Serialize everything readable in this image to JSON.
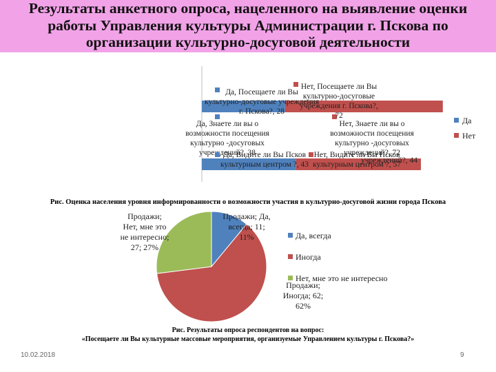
{
  "slide": {
    "title": "Результаты анкетного опроса, нацеленного на выявление оценки работы Управления культуры Администрации г. Пскова по организации культурно-досуговой деятельности",
    "footer_date": "10.02.2018",
    "page_number": "9",
    "title_band_color": "#f2a3e8"
  },
  "chart_data": [
    {
      "type": "bar",
      "orientation": "horizontal",
      "stacked": true,
      "caption": "Рис. Оценка населения уровня информированности о возможности участия в культурно-досуговой жизни города Пскова",
      "legend": {
        "position": "right",
        "entries": [
          "Да",
          "Нет"
        ]
      },
      "series": [
        {
          "name": "Да",
          "color": "#4f81bd",
          "values": [
            38,
            43
          ],
          "labels": [
            "Да, Знаете ли вы о возможности посещения культурно -досуговых учреждений?, 38",
            "Да, Видите ли Вы Псков культурным центром ?, 43"
          ]
        },
        {
          "name": "Нет",
          "color": "#c0504d",
          "values": [
            72,
            57
          ],
          "labels": [
            "Нет, Знаете ли вы о возможности посещения культурно -досуговых учреждений?, 72",
            "Нет, Видите ли Вы Псков культурным центром ?, 57"
          ]
        }
      ],
      "overlap_labels": [
        "Да, Посещаете ли Вы культурно-досуговые учреждения г. Пскова?, 28",
        "Нет, Посещаете ли Вы культурно-досуговые учреждения г. Пскова?, 72",
        "учреждений?, 44"
      ],
      "grid": false
    },
    {
      "type": "pie",
      "title": "Продажи",
      "caption1": "Рис. Результаты опроса респондентов на вопрос:",
      "caption2": "«Посещаете ли Вы культурные массовые мероприятия, организуемые Управлением культуры г. Пскова?»",
      "legend": {
        "position": "right"
      },
      "slices": [
        {
          "name": "Да, всегда",
          "value": 11,
          "percent": "11%",
          "color": "#4f81bd",
          "label_lines": [
            "Продажи; Да,",
            "всегда; 11;",
            "11%"
          ]
        },
        {
          "name": "Иногда",
          "value": 62,
          "percent": "62%",
          "color": "#c0504d",
          "label_lines": [
            "Продажи;",
            "Иногда; 62;",
            "62%"
          ]
        },
        {
          "name": "Нет, мне это не интересно",
          "value": 27,
          "percent": "27%",
          "color": "#9bbb59",
          "label_lines": [
            "Продажи;",
            "Нет, мне это",
            "не интересно;",
            "27; 27%"
          ]
        }
      ]
    }
  ]
}
